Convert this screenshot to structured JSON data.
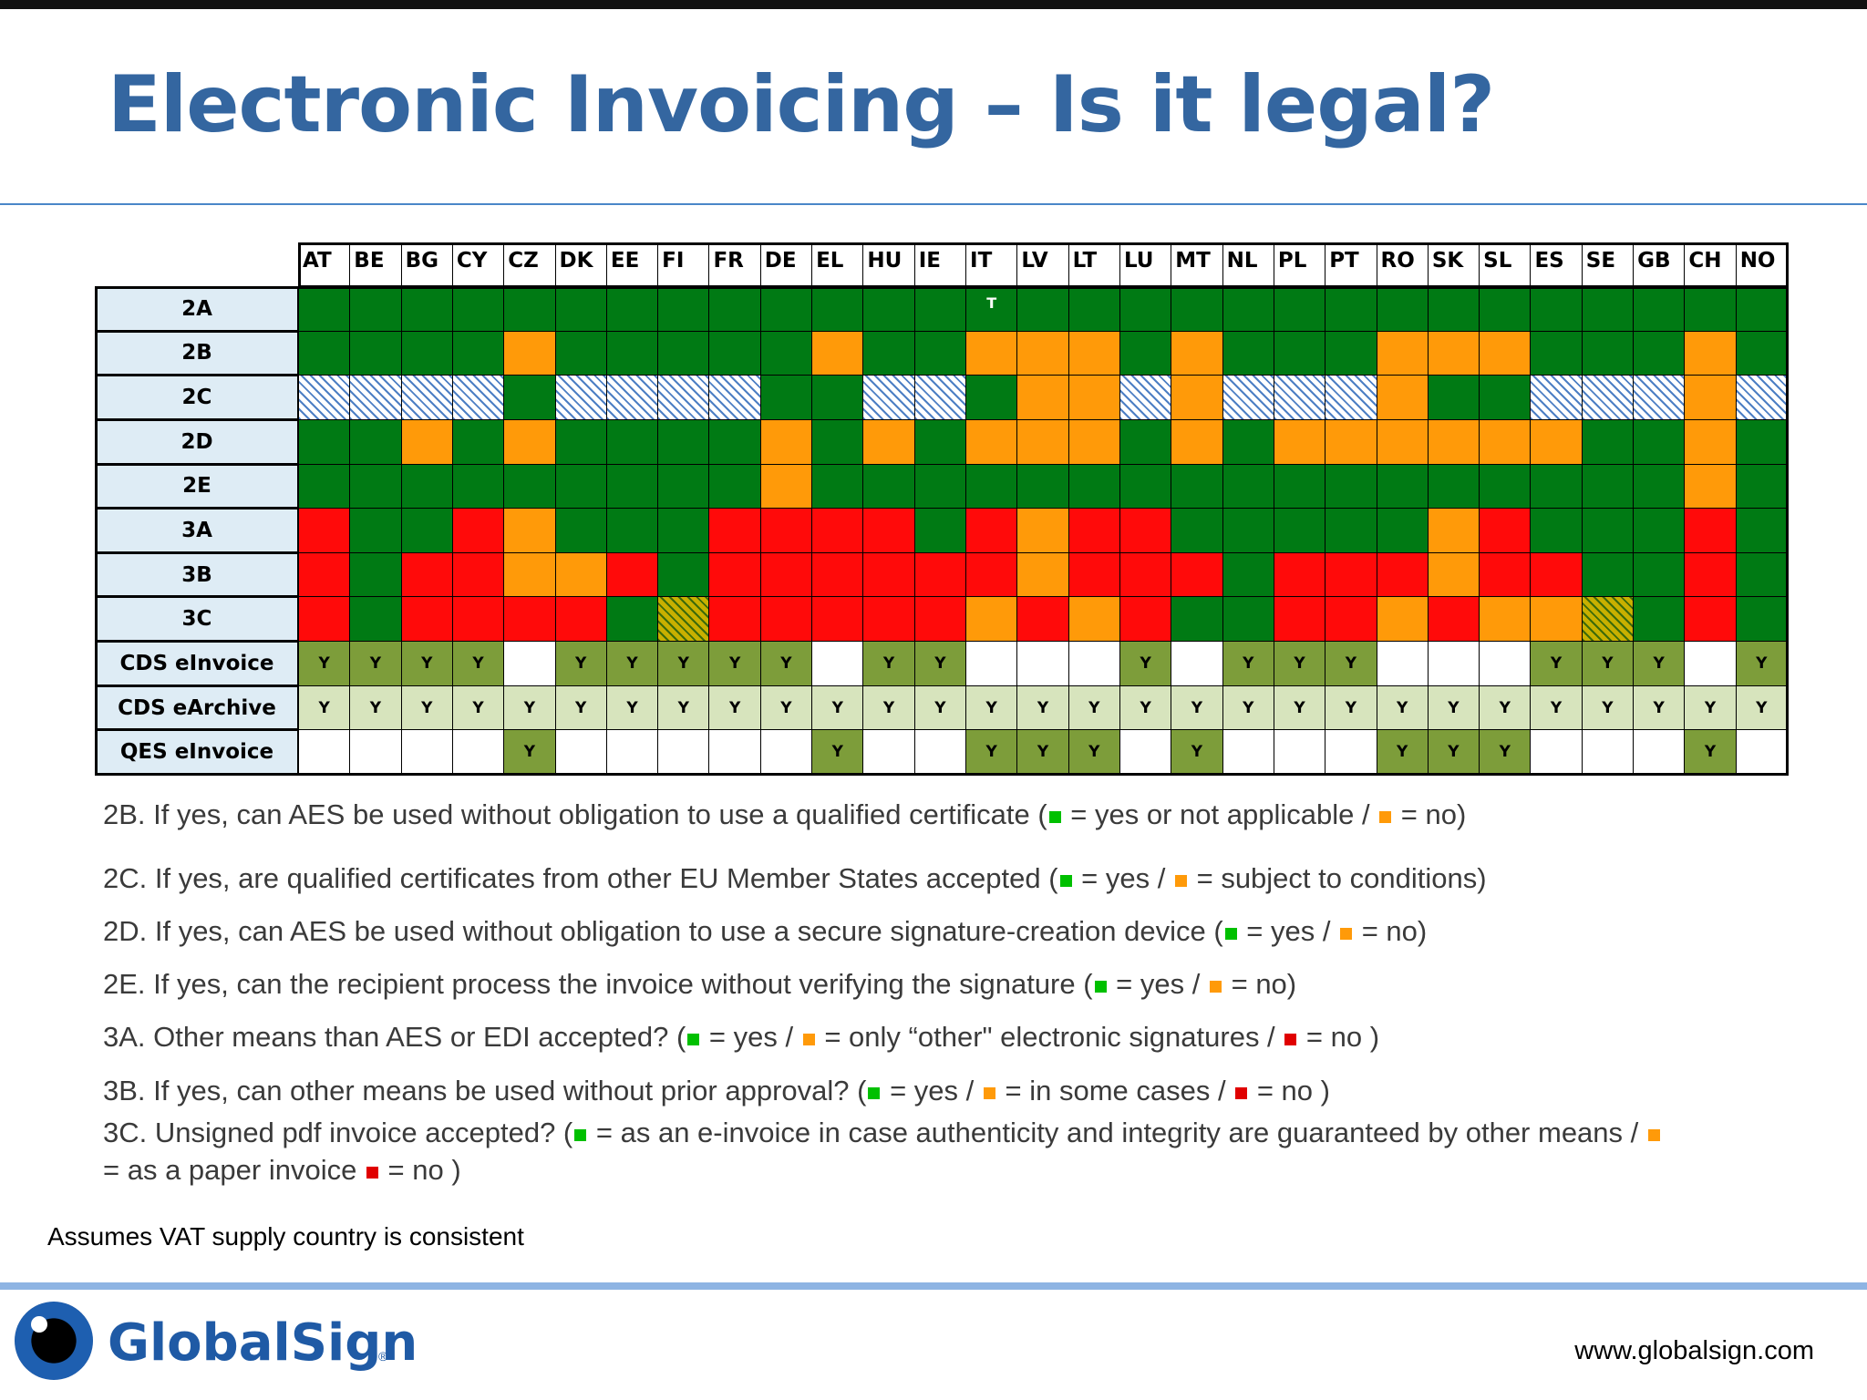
{
  "title": "Electronic Invoicing – Is it legal?",
  "colors": {
    "green": "#007a14",
    "orange": "#ff9a09",
    "red": "#ff0a0a",
    "light_olive": "#7d9d3a",
    "pale_olive": "#d7e4bd",
    "hatched_blue": "#4d7fc4",
    "title_blue": "#3466a0",
    "row_header_bg": "#deecf5"
  },
  "table": {
    "columns": [
      "AT",
      "BE",
      "BG",
      "CY",
      "CZ",
      "DK",
      "EE",
      "FI",
      "FR",
      "DE",
      "EL",
      "HU",
      "IE",
      "IT",
      "LV",
      "LT",
      "LU",
      "MT",
      "NL",
      "PL",
      "PT",
      "RO",
      "SK",
      "SL",
      "ES",
      "SE",
      "GB",
      "CH",
      "NO"
    ],
    "cell_codes": "g=green, o=orange, r=red, w=white, l=olive, p=pale olive, h=blue hatched, y=olive hatched",
    "rows": [
      {
        "label": "2A",
        "cells": [
          "g",
          "g",
          "g",
          "g",
          "g",
          "g",
          "g",
          "g",
          "g",
          "g",
          "g",
          "g",
          "g",
          "g",
          "g",
          "g",
          "g",
          "g",
          "g",
          "g",
          "g",
          "g",
          "g",
          "g",
          "g",
          "g",
          "g",
          "g",
          "g"
        ],
        "marks": {
          "13": "T"
        }
      },
      {
        "label": "2B",
        "cells": [
          "g",
          "g",
          "g",
          "g",
          "o",
          "g",
          "g",
          "g",
          "g",
          "g",
          "o",
          "g",
          "g",
          "o",
          "o",
          "o",
          "g",
          "o",
          "g",
          "g",
          "g",
          "o",
          "o",
          "o",
          "g",
          "g",
          "g",
          "o",
          "g"
        ]
      },
      {
        "label": "2C",
        "cells": [
          "h",
          "h",
          "h",
          "h",
          "g",
          "h",
          "h",
          "h",
          "h",
          "g",
          "g",
          "h",
          "h",
          "g",
          "o",
          "o",
          "h",
          "o",
          "h",
          "h",
          "h",
          "o",
          "g",
          "g",
          "h",
          "h",
          "h",
          "o",
          "h"
        ]
      },
      {
        "label": "2D",
        "cells": [
          "g",
          "g",
          "o",
          "g",
          "o",
          "g",
          "g",
          "g",
          "g",
          "o",
          "g",
          "o",
          "g",
          "o",
          "o",
          "o",
          "g",
          "o",
          "g",
          "o",
          "o",
          "o",
          "o",
          "o",
          "o",
          "g",
          "g",
          "o",
          "g"
        ]
      },
      {
        "label": "2E",
        "cells": [
          "g",
          "g",
          "g",
          "g",
          "g",
          "g",
          "g",
          "g",
          "g",
          "o",
          "g",
          "g",
          "g",
          "g",
          "g",
          "g",
          "g",
          "g",
          "g",
          "g",
          "g",
          "g",
          "g",
          "g",
          "g",
          "g",
          "g",
          "o",
          "g"
        ]
      },
      {
        "label": "3A",
        "cells": [
          "r",
          "g",
          "g",
          "r",
          "o",
          "g",
          "g",
          "g",
          "r",
          "r",
          "r",
          "r",
          "g",
          "r",
          "o",
          "r",
          "r",
          "g",
          "g",
          "g",
          "g",
          "g",
          "o",
          "r",
          "g",
          "g",
          "g",
          "r",
          "g"
        ]
      },
      {
        "label": "3B",
        "cells": [
          "r",
          "g",
          "r",
          "r",
          "o",
          "o",
          "r",
          "g",
          "r",
          "r",
          "r",
          "r",
          "r",
          "r",
          "o",
          "r",
          "r",
          "r",
          "g",
          "r",
          "r",
          "r",
          "o",
          "r",
          "r",
          "g",
          "g",
          "r",
          "g"
        ]
      },
      {
        "label": "3C",
        "cells": [
          "r",
          "g",
          "r",
          "r",
          "r",
          "r",
          "g",
          "y",
          "r",
          "r",
          "r",
          "r",
          "r",
          "o",
          "r",
          "o",
          "r",
          "g",
          "g",
          "r",
          "r",
          "o",
          "r",
          "o",
          "o",
          "y",
          "g",
          "r",
          "g"
        ]
      },
      {
        "label": "CDS eInvoice",
        "cells": [
          "l",
          "l",
          "l",
          "l",
          "w",
          "l",
          "l",
          "l",
          "l",
          "l",
          "w",
          "l",
          "l",
          "w",
          "w",
          "w",
          "l",
          "w",
          "l",
          "l",
          "l",
          "w",
          "w",
          "w",
          "l",
          "l",
          "l",
          "w",
          "l"
        ],
        "mark": "Y"
      },
      {
        "label": "CDS eArchive",
        "cells": [
          "p",
          "p",
          "p",
          "p",
          "p",
          "p",
          "p",
          "p",
          "p",
          "p",
          "p",
          "p",
          "p",
          "p",
          "p",
          "p",
          "p",
          "p",
          "p",
          "p",
          "p",
          "p",
          "p",
          "p",
          "p",
          "p",
          "p",
          "p",
          "p"
        ],
        "mark": "Y"
      },
      {
        "label": "QES eInvoice",
        "cells": [
          "w",
          "w",
          "w",
          "w",
          "l",
          "w",
          "w",
          "w",
          "w",
          "w",
          "l",
          "w",
          "w",
          "l",
          "l",
          "l",
          "w",
          "l",
          "w",
          "w",
          "w",
          "l",
          "l",
          "l",
          "w",
          "w",
          "w",
          "l",
          "w"
        ],
        "mark": "Y"
      }
    ]
  },
  "legend": [
    {
      "id": "2b",
      "parts": [
        {
          "t": "2B. If yes, can AES be used without obligation to use a qualified certificate ("
        },
        {
          "sq": "green"
        },
        {
          "t": " = yes or not applicable / "
        },
        {
          "sq": "orange"
        },
        {
          "t": " = no)"
        }
      ]
    },
    {
      "id": "2c",
      "parts": [
        {
          "t": "2C. If yes, are qualified certificates from other EU Member States accepted ("
        },
        {
          "sq": "green"
        },
        {
          "t": " = yes / "
        },
        {
          "sq": "orange"
        },
        {
          "t": " = subject to conditions)"
        }
      ]
    },
    {
      "id": "2d",
      "parts": [
        {
          "t": "2D. If yes, can AES be used without obligation to use a secure signature-creation device ("
        },
        {
          "sq": "green"
        },
        {
          "t": " = yes / "
        },
        {
          "sq": "orange"
        },
        {
          "t": " = no)"
        }
      ]
    },
    {
      "id": "2e",
      "parts": [
        {
          "t": "2E. If yes, can the recipient process the invoice without verifying the signature ("
        },
        {
          "sq": "green"
        },
        {
          "t": " = yes / "
        },
        {
          "sq": "orange"
        },
        {
          "t": " = no)"
        }
      ]
    },
    {
      "id": "3a",
      "parts": [
        {
          "t": "3A. Other means than AES or EDI accepted? ("
        },
        {
          "sq": "green"
        },
        {
          "t": " = yes / "
        },
        {
          "sq": "orange"
        },
        {
          "t": " = only “other\" electronic signatures / "
        },
        {
          "sq": "red"
        },
        {
          "t": " = no )"
        }
      ]
    },
    {
      "id": "3b",
      "parts": [
        {
          "t": "3B. If yes, can other means be used without prior approval? ("
        },
        {
          "sq": "green"
        },
        {
          "t": " = yes / "
        },
        {
          "sq": "orange"
        },
        {
          "t": " = in some cases / "
        },
        {
          "sq": "red"
        },
        {
          "t": " = no )"
        }
      ]
    },
    {
      "id": "3c-1",
      "parts": [
        {
          "t": "3C. Unsigned pdf invoice accepted? ("
        },
        {
          "sq": "green"
        },
        {
          "t": " = as an e-invoice in case authenticity and integrity are guaranteed by other means / "
        },
        {
          "sq": "orange"
        }
      ]
    },
    {
      "id": "3c-2",
      "parts": [
        {
          "t": "= as a paper invoice "
        },
        {
          "sq": "red"
        },
        {
          "t": " = no )"
        }
      ]
    }
  ],
  "footnote": "Assumes VAT supply country is consistent",
  "footer": {
    "logo_text": "GlobalSign",
    "logo_reg": "®",
    "website": "www.globalsign.com"
  }
}
